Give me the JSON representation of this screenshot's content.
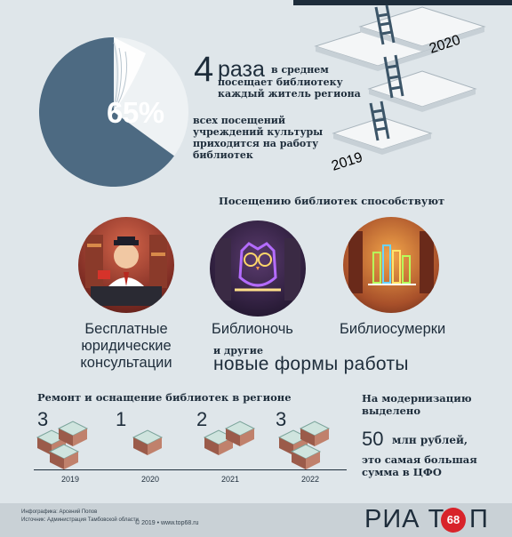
{
  "colors": {
    "background": "#dfe6ea",
    "pie_dark": "#4d6a82",
    "pie_light": "#eef2f4",
    "text": "#1e2d3b",
    "brand_red": "#d8232a"
  },
  "top": {
    "percent": "65%",
    "percent_value": 65,
    "times_number": "4",
    "times_word": "раза",
    "times_line1": "в среднем",
    "times_line2": "посещает библиотеку",
    "times_line3": "каждый житель региона",
    "share_line1": "всех посещений",
    "share_line2": "учреждений культуры",
    "share_line3": "приходится на работу",
    "share_line4": "библиотек",
    "year_start": "2019",
    "year_end": "2020"
  },
  "middle": {
    "title": "Посещению библиотек способствуют",
    "items": [
      {
        "line1": "Бесплатные",
        "line2": "юридические",
        "line3": "консультации",
        "icon": "lawyer-illustration"
      },
      {
        "line1": "Библионочь",
        "icon": "owl-neon-illustration"
      },
      {
        "line1": "Библиосумерки",
        "icon": "neon-books-illustration"
      }
    ],
    "other_small": "и другие",
    "other_big": "новые формы работы"
  },
  "bottom": {
    "title": "Ремонт и оснащение библиотек в регионе",
    "years": [
      {
        "year": "2019",
        "count": "3",
        "value": 3
      },
      {
        "year": "2020",
        "count": "1",
        "value": 1
      },
      {
        "year": "2021",
        "count": "2",
        "value": 2
      },
      {
        "year": "2022",
        "count": "3",
        "value": 3
      }
    ],
    "modern_line1": "На модернизацию",
    "modern_line2": "выделено",
    "amount": "50",
    "amount_unit": "млн рублей,",
    "modern_line3": "это самая большая",
    "modern_line4": "сумма в ЦФО"
  },
  "footer": {
    "credit_infographic": "Инфографика: Арсений Попов",
    "credit_source": "Источник: Администрация Тамбовской области",
    "copyright": "© 2019 • www.top68.ru",
    "logo_left": "РИА Т",
    "logo_badge": "68",
    "logo_right": "П"
  }
}
